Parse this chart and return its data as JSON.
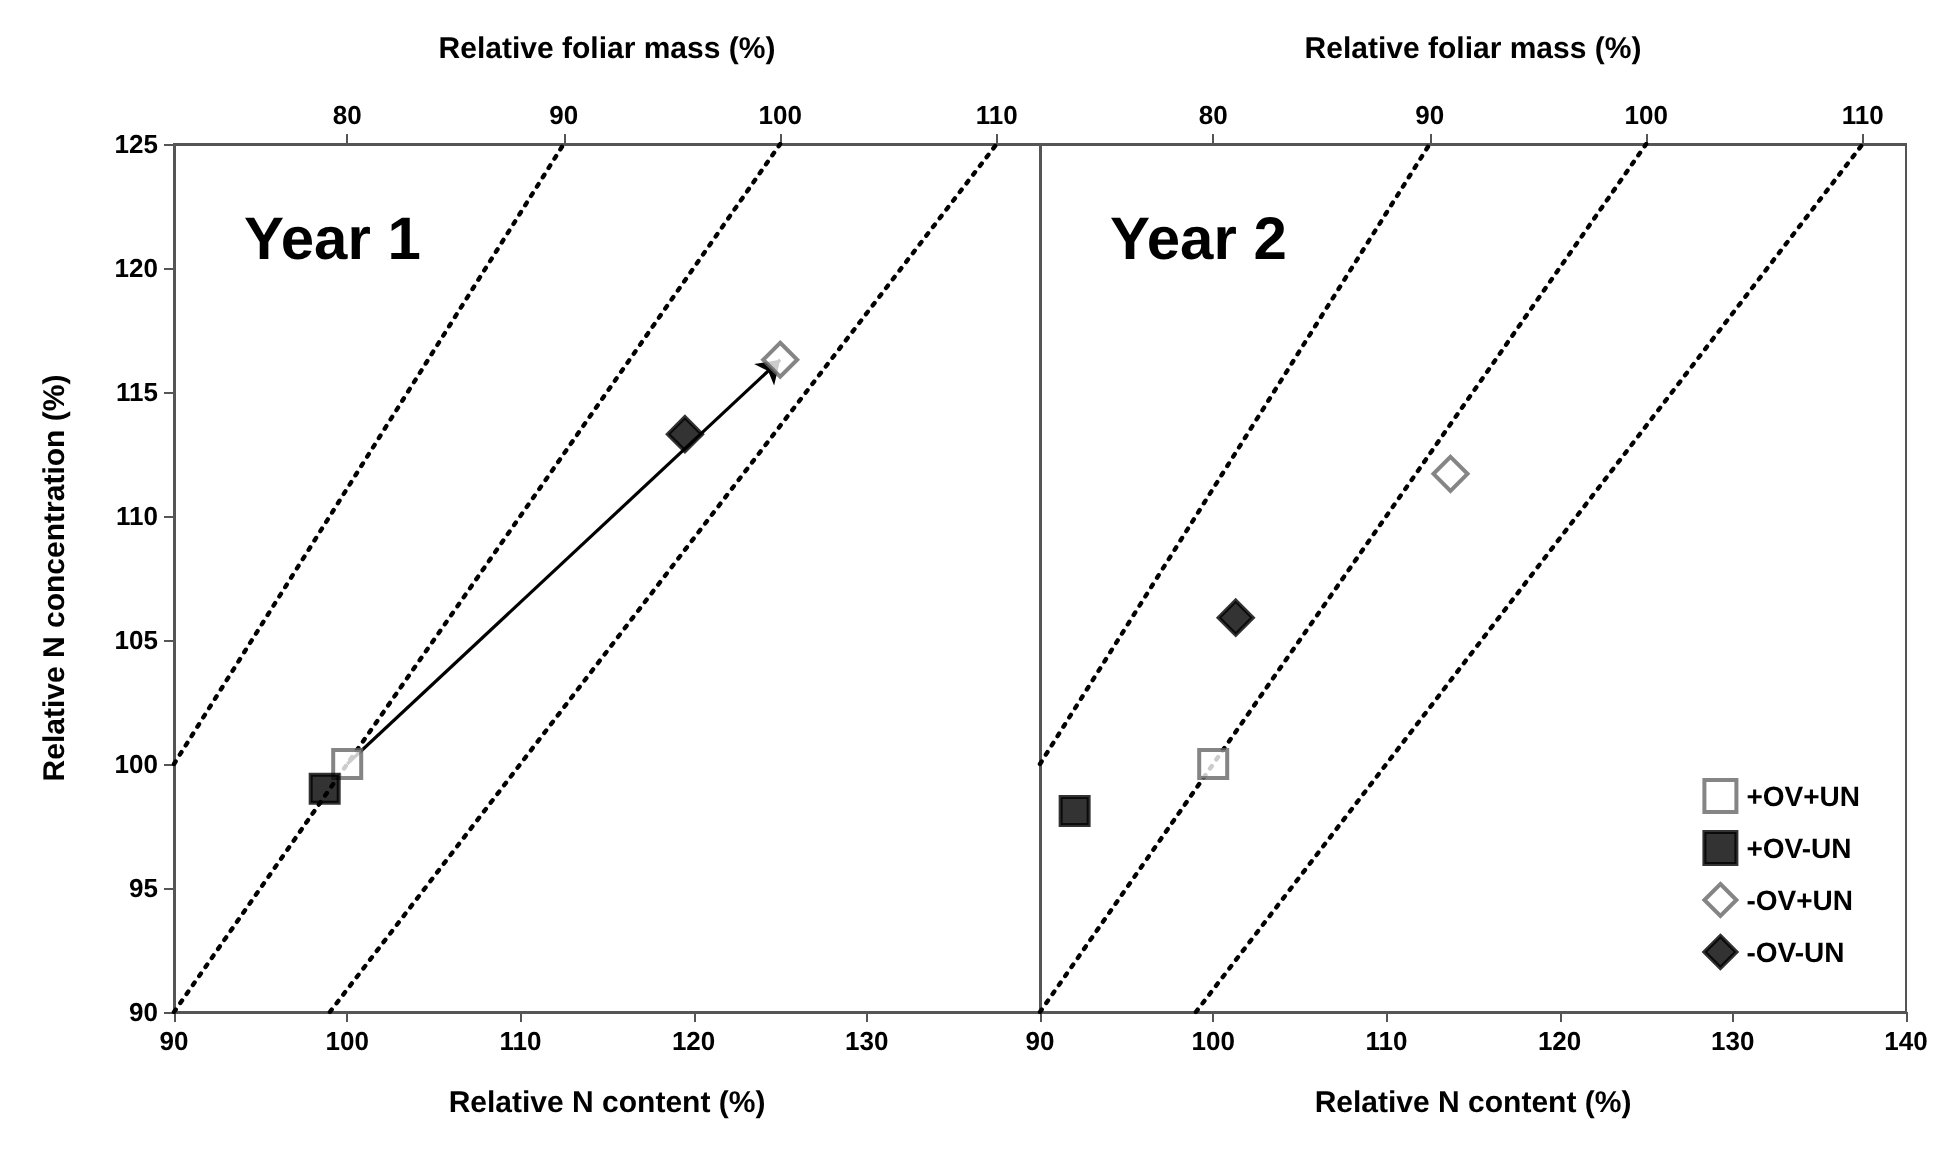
{
  "chart_data": [
    {
      "type": "scatter",
      "title": "Year 1",
      "xlabel": "Relative N content (%)",
      "ylabel": "Relative N concentration (%)",
      "x2label": "Relative foliar mass (%)",
      "xlim": [
        90,
        140
      ],
      "xticks": [
        90,
        100,
        110,
        120,
        130
      ],
      "x2lim": [
        72,
        112
      ],
      "x2ticks": [
        80,
        90,
        100,
        110
      ],
      "ylim": [
        90,
        125
      ],
      "yticks": [
        90,
        95,
        100,
        105,
        110,
        115,
        120,
        125
      ],
      "grid": false,
      "legend": false,
      "series": [
        {
          "color": "#ffffff",
          "marker": "square",
          "x": [
            100
          ],
          "values": [
            100
          ]
        },
        {
          "color": "#000000",
          "marker": "square",
          "x": [
            98.7
          ],
          "values": [
            99.0
          ]
        },
        {
          "color": "#ffffff",
          "marker": "diamond",
          "x": [
            125.0
          ],
          "values": [
            116.3
          ]
        },
        {
          "color": "#000000",
          "marker": "diamond",
          "x": [
            119.5
          ],
          "values": [
            113.3
          ]
        },
        {
          "type": "line",
          "color": "#000000",
          "marker": "none",
          "line_style": "dotted",
          "x": [
            90,
            112.5
          ],
          "values": [
            100,
            125
          ]
        },
        {
          "type": "line",
          "color": "#000000",
          "marker": "none",
          "line_style": "dotted",
          "x": [
            90,
            125
          ],
          "values": [
            90,
            125
          ]
        },
        {
          "type": "line",
          "color": "#000000",
          "marker": "none",
          "line_style": "dotted",
          "x": [
            99,
            137.5
          ],
          "values": [
            90,
            125
          ]
        }
      ]
    },
    {
      "type": "scatter",
      "title": "Year 2",
      "xlabel": "Relative N content (%)",
      "x2label": "Relative foliar mass (%)",
      "xlim": [
        90,
        140
      ],
      "xticks": [
        90,
        100,
        110,
        120,
        130,
        140
      ],
      "x2lim": [
        72,
        112
      ],
      "x2ticks": [
        80,
        90,
        100,
        110
      ],
      "ylim": [
        90,
        125
      ],
      "tick_labels": "x",
      "grid": false,
      "legend": "bottom right",
      "series": [
        {
          "name": "+OV+UN",
          "color": "#ffffff",
          "marker": "square",
          "x": [
            100
          ],
          "values": [
            100
          ]
        },
        {
          "name": "+OV-UN",
          "color": "#000000",
          "marker": "square",
          "x": [
            92.0
          ],
          "values": [
            98.1
          ]
        },
        {
          "name": "-OV+UN",
          "color": "#ffffff",
          "marker": "diamond",
          "x": [
            113.7
          ],
          "values": [
            111.7
          ]
        },
        {
          "name": "-OV-UN",
          "color": "#000000",
          "marker": "diamond",
          "x": [
            101.3
          ],
          "values": [
            105.9
          ]
        },
        {
          "type": "line",
          "color": "#000000",
          "marker": "none",
          "line_style": "dotted",
          "x": [
            90,
            112.5
          ],
          "values": [
            100,
            125
          ]
        },
        {
          "type": "line",
          "color": "#000000",
          "marker": "none",
          "line_style": "dotted",
          "x": [
            90,
            125
          ],
          "values": [
            90,
            125
          ]
        },
        {
          "type": "line",
          "color": "#000000",
          "marker": "none",
          "line_style": "dotted",
          "x": [
            99,
            137.5
          ],
          "values": [
            90,
            125
          ]
        }
      ]
    }
  ]
}
